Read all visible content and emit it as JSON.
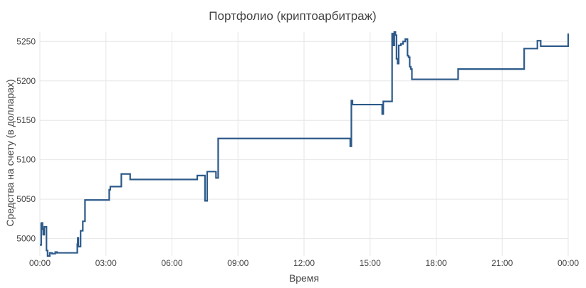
{
  "chart_data": {
    "type": "line",
    "title": "Портфолио (криптоарбитраж)",
    "xlabel": "Время",
    "ylabel": "Средства на счету (в долларах)",
    "x_ticks": [
      "00:00",
      "03:00",
      "06:00",
      "09:00",
      "12:00",
      "15:00",
      "18:00",
      "21:00",
      "00:00"
    ],
    "y_ticks": [
      5000,
      5050,
      5100,
      5150,
      5200,
      5250
    ],
    "x_range_hours": [
      0,
      24
    ],
    "ylim": [
      4978,
      5262
    ],
    "grid": true,
    "colors": {
      "series": "#2c5a8a",
      "grid": "#e6e6e6"
    },
    "series": [
      {
        "step": "post",
        "x_hours": [
          0.0,
          0.06,
          0.08,
          0.12,
          0.15,
          0.2,
          0.3,
          0.35,
          0.38,
          0.45,
          0.55,
          0.7,
          0.78,
          0.85,
          0.95,
          1.05,
          1.3,
          1.7,
          1.72,
          1.75,
          1.85,
          1.95,
          2.05,
          3.1,
          3.15,
          3.2,
          3.3,
          3.7,
          4.0,
          4.1,
          7.1,
          7.15,
          7.5,
          7.55,
          7.6,
          8.0,
          8.05,
          8.1,
          14.1,
          14.15,
          14.2,
          15.5,
          15.55,
          15.6,
          15.65,
          15.95,
          16.0,
          16.05,
          16.1,
          16.15,
          16.2,
          16.25,
          16.3,
          16.4,
          16.5,
          16.6,
          16.7,
          16.75,
          16.8,
          16.85,
          16.9,
          17.0,
          18.9,
          19.0,
          21.8,
          22.0,
          22.6,
          22.75,
          24.0
        ],
        "y": [
          4992,
          5019,
          5020,
          5012,
          5005,
          5015,
          4985,
          4978,
          4978,
          4982,
          4981,
          4983,
          4982,
          4982,
          4982,
          4982,
          4982,
          4993,
          5001,
          4990,
          5010,
          5022,
          5049,
          5049,
          5062,
          5066,
          5066,
          5082,
          5082,
          5075,
          5075,
          5080,
          5048,
          5048,
          5085,
          5077,
          5077,
          5127,
          5117,
          5175,
          5170,
          5170,
          5158,
          5174,
          5174,
          5174,
          5260,
          5245,
          5262,
          5258,
          5228,
          5222,
          5245,
          5247,
          5250,
          5253,
          5232,
          5230,
          5218,
          5215,
          5202,
          5202,
          5202,
          5215,
          5215,
          5241,
          5251,
          5244,
          5260
        ]
      }
    ]
  }
}
